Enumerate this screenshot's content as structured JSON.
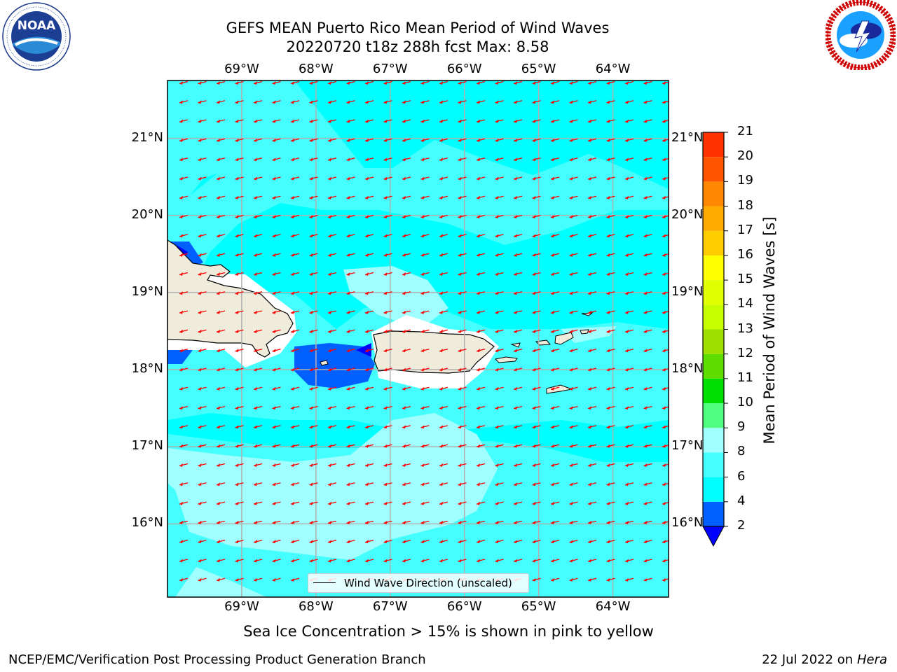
{
  "header": {
    "title_line1": "GEFS MEAN Puerto Rico Mean Period of Wind Waves",
    "title_line2": "20220720 t18z 288h fcst   Max: 8.58"
  },
  "logos": {
    "left": {
      "name": "NOAA",
      "text": "NOAA",
      "ring_text": "NATIONAL OCEANIC AND ATMOSPHERIC ADMINISTRATION · U.S. DEPARTMENT OF COMMERCE"
    },
    "right": {
      "name": "National Weather Service",
      "ring_text": "NATIONAL WEATHER SERVICE"
    }
  },
  "map": {
    "lon_range": [
      -70.0,
      -63.25
    ],
    "lat_range": [
      15.05,
      21.75
    ],
    "lon_labels": [
      "69°W",
      "68°W",
      "67°W",
      "66°W",
      "65°W",
      "64°W"
    ],
    "lat_labels": [
      "21°N",
      "20°N",
      "19°N",
      "18°N",
      "17°N",
      "16°N"
    ],
    "gridlines": true,
    "ocean_color": "#00ffff",
    "land_color": "#efecdc",
    "wind_direction": "toward west-southwest",
    "arrow_color": "#ff0000",
    "legend": {
      "label": "Wind Wave Direction (unscaled)",
      "placement": "bottom-center"
    }
  },
  "colorbar": {
    "title": "Mean Period of Wind Waves [s]",
    "ticks": [
      "2",
      "4",
      "6",
      "8",
      "9",
      "10",
      "11",
      "12",
      "13",
      "14",
      "15",
      "16",
      "17",
      "18",
      "19",
      "20",
      "21"
    ],
    "colors": [
      "#0060ff",
      "#00ffff",
      "#45ffff",
      "#a0ffff",
      "#50ff80",
      "#00e000",
      "#60dd00",
      "#a0e000",
      "#c8ff00",
      "#e0ff00",
      "#ffff00",
      "#ffcc00",
      "#ffaa00",
      "#ff8800",
      "#ff5500",
      "#ff3300",
      "#ff0000"
    ],
    "under_color": "#0000ff"
  },
  "subtitle": "Sea Ice Concentration > 15% is shown in pink to yellow",
  "footer": {
    "left": "NCEP/EMC/Verification Post Processing Product Generation Branch",
    "right_prefix": "22 Jul 2022 on ",
    "right_host": "Hera"
  }
}
